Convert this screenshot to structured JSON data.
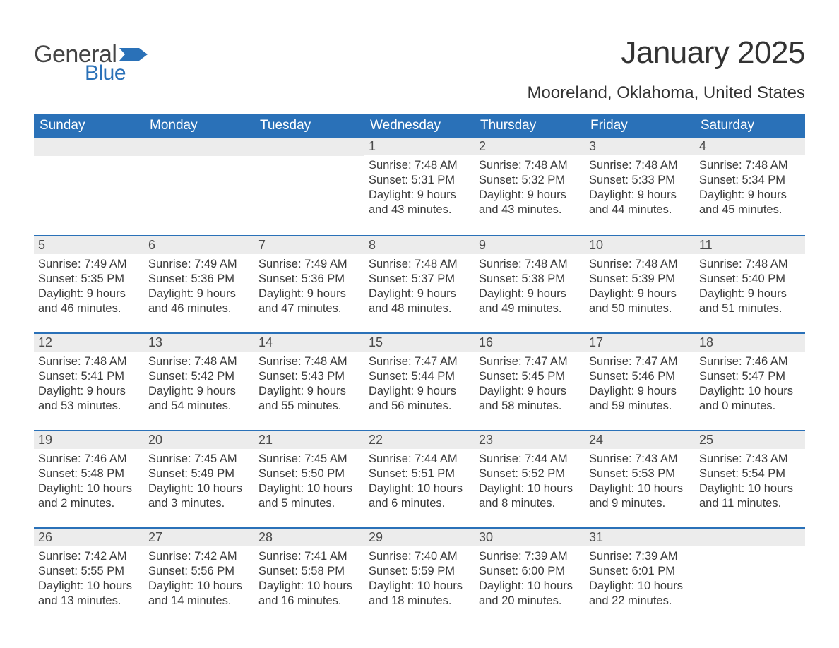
{
  "logo": {
    "general": "General",
    "blue": "Blue",
    "flag_color": "#2a71b8"
  },
  "title": "January 2025",
  "location": "Mooreland, Oklahoma, United States",
  "colors": {
    "header_bg": "#2a71b8",
    "header_text": "#ffffff",
    "daynum_bg": "#ececec",
    "daynum_border": "#2a71b8",
    "body_text": "#3a3a3a",
    "page_bg": "#ffffff"
  },
  "typography": {
    "title_fontsize": 44,
    "location_fontsize": 24,
    "header_fontsize": 19,
    "daynum_fontsize": 18,
    "body_fontsize": 16.5
  },
  "day_headers": [
    "Sunday",
    "Monday",
    "Tuesday",
    "Wednesday",
    "Thursday",
    "Friday",
    "Saturday"
  ],
  "labels": {
    "sunrise": "Sunrise:",
    "sunset": "Sunset:",
    "daylight": "Daylight:"
  },
  "weeks": [
    [
      null,
      null,
      null,
      {
        "n": "1",
        "sunrise": "7:48 AM",
        "sunset": "5:31 PM",
        "daylight": "9 hours and 43 minutes."
      },
      {
        "n": "2",
        "sunrise": "7:48 AM",
        "sunset": "5:32 PM",
        "daylight": "9 hours and 43 minutes."
      },
      {
        "n": "3",
        "sunrise": "7:48 AM",
        "sunset": "5:33 PM",
        "daylight": "9 hours and 44 minutes."
      },
      {
        "n": "4",
        "sunrise": "7:48 AM",
        "sunset": "5:34 PM",
        "daylight": "9 hours and 45 minutes."
      }
    ],
    [
      {
        "n": "5",
        "sunrise": "7:49 AM",
        "sunset": "5:35 PM",
        "daylight": "9 hours and 46 minutes."
      },
      {
        "n": "6",
        "sunrise": "7:49 AM",
        "sunset": "5:36 PM",
        "daylight": "9 hours and 46 minutes."
      },
      {
        "n": "7",
        "sunrise": "7:49 AM",
        "sunset": "5:36 PM",
        "daylight": "9 hours and 47 minutes."
      },
      {
        "n": "8",
        "sunrise": "7:48 AM",
        "sunset": "5:37 PM",
        "daylight": "9 hours and 48 minutes."
      },
      {
        "n": "9",
        "sunrise": "7:48 AM",
        "sunset": "5:38 PM",
        "daylight": "9 hours and 49 minutes."
      },
      {
        "n": "10",
        "sunrise": "7:48 AM",
        "sunset": "5:39 PM",
        "daylight": "9 hours and 50 minutes."
      },
      {
        "n": "11",
        "sunrise": "7:48 AM",
        "sunset": "5:40 PM",
        "daylight": "9 hours and 51 minutes."
      }
    ],
    [
      {
        "n": "12",
        "sunrise": "7:48 AM",
        "sunset": "5:41 PM",
        "daylight": "9 hours and 53 minutes."
      },
      {
        "n": "13",
        "sunrise": "7:48 AM",
        "sunset": "5:42 PM",
        "daylight": "9 hours and 54 minutes."
      },
      {
        "n": "14",
        "sunrise": "7:48 AM",
        "sunset": "5:43 PM",
        "daylight": "9 hours and 55 minutes."
      },
      {
        "n": "15",
        "sunrise": "7:47 AM",
        "sunset": "5:44 PM",
        "daylight": "9 hours and 56 minutes."
      },
      {
        "n": "16",
        "sunrise": "7:47 AM",
        "sunset": "5:45 PM",
        "daylight": "9 hours and 58 minutes."
      },
      {
        "n": "17",
        "sunrise": "7:47 AM",
        "sunset": "5:46 PM",
        "daylight": "9 hours and 59 minutes."
      },
      {
        "n": "18",
        "sunrise": "7:46 AM",
        "sunset": "5:47 PM",
        "daylight": "10 hours and 0 minutes."
      }
    ],
    [
      {
        "n": "19",
        "sunrise": "7:46 AM",
        "sunset": "5:48 PM",
        "daylight": "10 hours and 2 minutes."
      },
      {
        "n": "20",
        "sunrise": "7:45 AM",
        "sunset": "5:49 PM",
        "daylight": "10 hours and 3 minutes."
      },
      {
        "n": "21",
        "sunrise": "7:45 AM",
        "sunset": "5:50 PM",
        "daylight": "10 hours and 5 minutes."
      },
      {
        "n": "22",
        "sunrise": "7:44 AM",
        "sunset": "5:51 PM",
        "daylight": "10 hours and 6 minutes."
      },
      {
        "n": "23",
        "sunrise": "7:44 AM",
        "sunset": "5:52 PM",
        "daylight": "10 hours and 8 minutes."
      },
      {
        "n": "24",
        "sunrise": "7:43 AM",
        "sunset": "5:53 PM",
        "daylight": "10 hours and 9 minutes."
      },
      {
        "n": "25",
        "sunrise": "7:43 AM",
        "sunset": "5:54 PM",
        "daylight": "10 hours and 11 minutes."
      }
    ],
    [
      {
        "n": "26",
        "sunrise": "7:42 AM",
        "sunset": "5:55 PM",
        "daylight": "10 hours and 13 minutes."
      },
      {
        "n": "27",
        "sunrise": "7:42 AM",
        "sunset": "5:56 PM",
        "daylight": "10 hours and 14 minutes."
      },
      {
        "n": "28",
        "sunrise": "7:41 AM",
        "sunset": "5:58 PM",
        "daylight": "10 hours and 16 minutes."
      },
      {
        "n": "29",
        "sunrise": "7:40 AM",
        "sunset": "5:59 PM",
        "daylight": "10 hours and 18 minutes."
      },
      {
        "n": "30",
        "sunrise": "7:39 AM",
        "sunset": "6:00 PM",
        "daylight": "10 hours and 20 minutes."
      },
      {
        "n": "31",
        "sunrise": "7:39 AM",
        "sunset": "6:01 PM",
        "daylight": "10 hours and 22 minutes."
      },
      null
    ]
  ]
}
